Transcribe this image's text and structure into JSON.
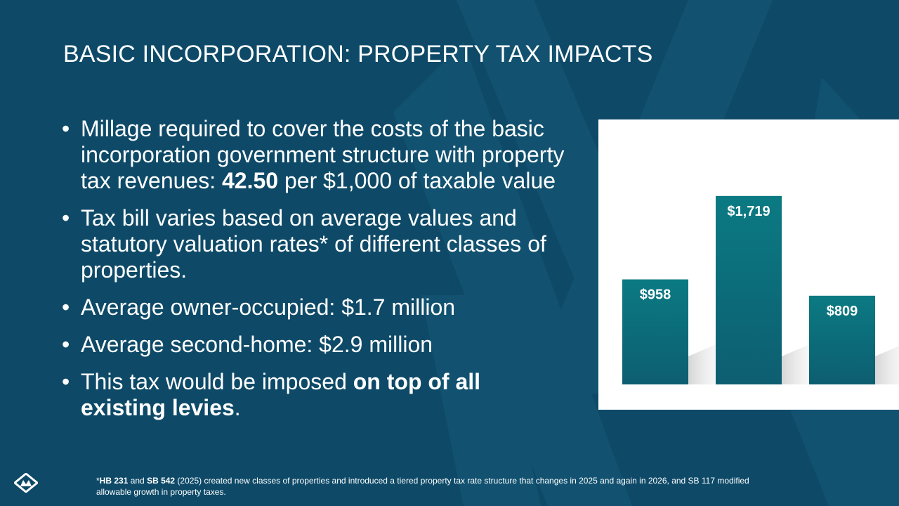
{
  "slide": {
    "title": "BASIC INCORPORATION: PROPERTY TAX IMPACTS",
    "background_color": "#0e4a68",
    "accent_color": "#0b737f",
    "watermark_icon": "mountain-logo-icon"
  },
  "bullets": [
    {
      "parts": [
        {
          "text": "Millage required to cover the costs of the basic incorporation government structure with property tax revenues: "
        },
        {
          "text": "42.50",
          "bold": true
        },
        {
          "text": " per $1,000 of taxable value"
        }
      ]
    },
    {
      "parts": [
        {
          "text": "Tax bill varies based on average values and statutory valuation rates* of different classes of properties."
        }
      ]
    },
    {
      "parts": [
        {
          "text": "Average owner-occupied: $1.7 million"
        }
      ]
    },
    {
      "parts": [
        {
          "text": "Average second-home: $2.9 million"
        }
      ]
    },
    {
      "parts": [
        {
          "text": "This tax would be imposed "
        },
        {
          "text": "on top of all existing levies",
          "bold": true
        },
        {
          "text": "."
        }
      ]
    }
  ],
  "bullet_glyph": "•",
  "chart_data": {
    "type": "bar",
    "categories": [
      "",
      "",
      ""
    ],
    "values": [
      958,
      1719,
      809
    ],
    "data_labels": [
      "$958",
      "$1,719",
      "$809"
    ],
    "ylim": [
      0,
      2000
    ],
    "grid": false,
    "bar_color": "#0b737f"
  },
  "footnote": {
    "parts": [
      {
        "text": "*"
      },
      {
        "text": "HB 231",
        "bold": true
      },
      {
        "text": " and "
      },
      {
        "text": "SB 542",
        "bold": true
      },
      {
        "text": " (2025) created new classes of properties and introduced a tiered property tax rate structure that changes in 2025 and again in 2026, and SB 117 modified allowable growth in property taxes."
      }
    ]
  },
  "logo_icon": "organization-logo-icon"
}
